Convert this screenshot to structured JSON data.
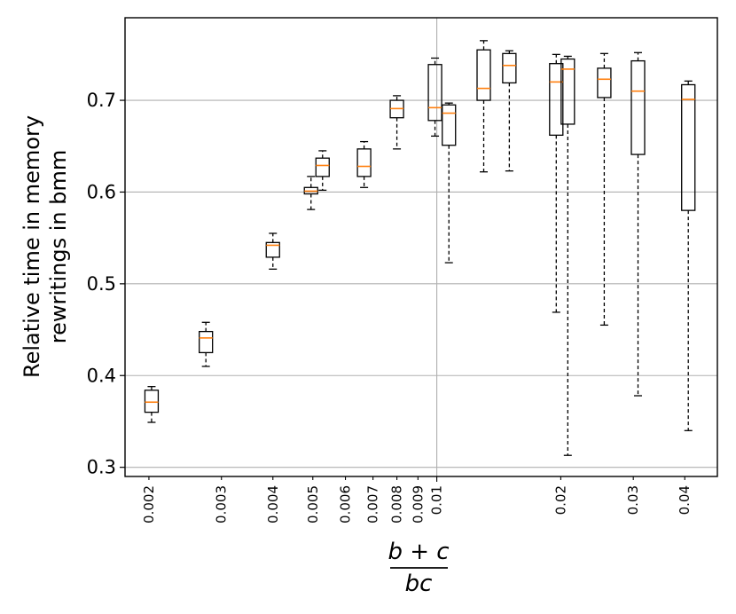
{
  "chart_data": {
    "type": "box",
    "ylabel_lines": [
      "Relative time in memory",
      "rewritings in bmm"
    ],
    "xlabel_numerator": "b + c",
    "xlabel_denominator": "bc",
    "x_scale": "log",
    "xlim": [
      0.00175,
      0.048
    ],
    "ylim": [
      0.29,
      0.79
    ],
    "grid": true,
    "y_ticks": [
      0.3,
      0.4,
      0.5,
      0.6,
      0.7
    ],
    "y_tick_labels": [
      "0.3",
      "0.4",
      "0.5",
      "0.6",
      "0.7"
    ],
    "x_ticks": [
      0.002,
      0.003,
      0.004,
      0.005,
      0.006,
      0.007,
      0.008,
      0.009,
      0.01,
      0.02,
      0.03,
      0.04
    ],
    "x_tick_labels": [
      "0.002",
      "0.003",
      "0.004",
      "0.005",
      "0.006",
      "0.007",
      "0.008",
      "0.009",
      "0.01",
      "0.02",
      "0.03",
      "0.04"
    ],
    "boxes": [
      {
        "x": 0.00203,
        "whislo": 0.349,
        "q1": 0.36,
        "med": 0.371,
        "q3": 0.384,
        "whishi": 0.388
      },
      {
        "x": 0.00275,
        "whislo": 0.41,
        "q1": 0.425,
        "med": 0.441,
        "q3": 0.448,
        "whishi": 0.458
      },
      {
        "x": 0.004,
        "whislo": 0.516,
        "q1": 0.529,
        "med": 0.542,
        "q3": 0.545,
        "whishi": 0.555
      },
      {
        "x": 0.00495,
        "whislo": 0.581,
        "q1": 0.598,
        "med": 0.601,
        "q3": 0.605,
        "whishi": 0.617
      },
      {
        "x": 0.00528,
        "whislo": 0.602,
        "q1": 0.617,
        "med": 0.629,
        "q3": 0.637,
        "whishi": 0.645
      },
      {
        "x": 0.00666,
        "whislo": 0.605,
        "q1": 0.617,
        "med": 0.628,
        "q3": 0.647,
        "whishi": 0.655
      },
      {
        "x": 0.008,
        "whislo": 0.647,
        "q1": 0.681,
        "med": 0.691,
        "q3": 0.7,
        "whishi": 0.705
      },
      {
        "x": 0.0099,
        "whislo": 0.661,
        "q1": 0.678,
        "med": 0.692,
        "q3": 0.739,
        "whishi": 0.746
      },
      {
        "x": 0.0107,
        "whislo": 0.523,
        "q1": 0.651,
        "med": 0.686,
        "q3": 0.695,
        "whishi": 0.697
      },
      {
        "x": 0.013,
        "whislo": 0.622,
        "q1": 0.7,
        "med": 0.713,
        "q3": 0.755,
        "whishi": 0.765
      },
      {
        "x": 0.015,
        "whislo": 0.623,
        "q1": 0.719,
        "med": 0.738,
        "q3": 0.751,
        "whishi": 0.754
      },
      {
        "x": 0.0195,
        "whislo": 0.469,
        "q1": 0.662,
        "med": 0.72,
        "q3": 0.74,
        "whishi": 0.75
      },
      {
        "x": 0.0208,
        "whislo": 0.313,
        "q1": 0.674,
        "med": 0.734,
        "q3": 0.745,
        "whishi": 0.748
      },
      {
        "x": 0.0255,
        "whislo": 0.455,
        "q1": 0.703,
        "med": 0.723,
        "q3": 0.735,
        "whishi": 0.751
      },
      {
        "x": 0.0308,
        "whislo": 0.378,
        "q1": 0.641,
        "med": 0.71,
        "q3": 0.743,
        "whishi": 0.752
      },
      {
        "x": 0.0408,
        "whislo": 0.34,
        "q1": 0.58,
        "med": 0.701,
        "q3": 0.717,
        "whishi": 0.721
      }
    ]
  },
  "colors": {
    "median": "#ff7f0e",
    "box_edge": "#000000",
    "grid": "#b0b0b0",
    "background": "#ffffff"
  }
}
